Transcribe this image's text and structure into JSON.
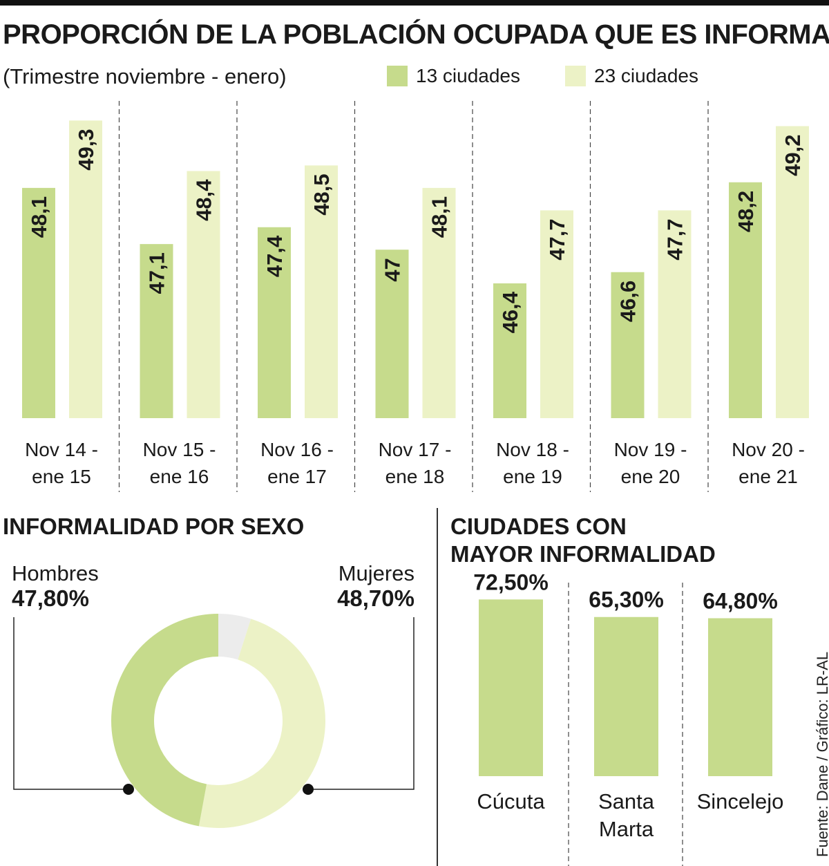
{
  "title": "PROPORCIÓN DE LA POBLACIÓN OCUPADA QUE ES INFORMAL",
  "subtitle": "(Trimestre noviembre - enero)",
  "colors": {
    "series13": "#c6db8c",
    "series23": "#ecf2c6",
    "pie_other": "#ececec",
    "text": "#1a1a1a"
  },
  "legend": [
    {
      "name": "13 ciudades",
      "color": "#c6db8c"
    },
    {
      "name": "23 ciudades",
      "color": "#ecf2c6"
    }
  ],
  "chart_data": [
    {
      "type": "bar",
      "title": "PROPORCIÓN DE LA POBLACIÓN OCUPADA QUE ES INFORMAL",
      "subtitle": "(Trimestre noviembre - enero)",
      "categories": [
        [
          "Nov 14 -",
          "ene 15"
        ],
        [
          "Nov 15 -",
          "ene 16"
        ],
        [
          "Nov 16 -",
          "ene 17"
        ],
        [
          "Nov 17 -",
          "ene 18"
        ],
        [
          "Nov 18 -",
          "ene 19"
        ],
        [
          "Nov 19 -",
          "ene 20"
        ],
        [
          "Nov 20 -",
          "ene 21"
        ]
      ],
      "series": [
        {
          "name": "13 ciudades",
          "values": [
            48.1,
            47.1,
            47.4,
            47.0,
            46.4,
            46.6,
            48.2
          ],
          "labels": [
            "48,1",
            "47,1",
            "47,4",
            "47",
            "46,4",
            "46,6",
            "48,2"
          ]
        },
        {
          "name": "23 ciudades",
          "values": [
            49.3,
            48.4,
            48.5,
            48.1,
            47.7,
            47.7,
            49.2
          ],
          "labels": [
            "49,3",
            "48,4",
            "48,5",
            "48,1",
            "47,7",
            "47,7",
            "49,2"
          ]
        }
      ],
      "ylim": [
        44.0,
        49.6
      ],
      "grid": false,
      "legend_position": "top"
    },
    {
      "type": "pie",
      "title": "INFORMALIDAD POR SEXO",
      "slices": [
        {
          "name": "Hombres",
          "value": 47.8,
          "label": "47,80%"
        },
        {
          "name": "Mujeres",
          "value": 48.7,
          "label": "48,70%"
        }
      ],
      "remainder_value": 5.0,
      "donut": true
    },
    {
      "type": "bar",
      "title": "CIUDADES CON MAYOR INFORMALIDAD",
      "title_lines": [
        "CIUDADES CON",
        "MAYOR INFORMALIDAD"
      ],
      "categories": [
        [
          "Cúcuta"
        ],
        [
          "Santa",
          "Marta"
        ],
        [
          "Sincelejo"
        ]
      ],
      "values": [
        72.5,
        65.3,
        64.8
      ],
      "labels": [
        "72,50%",
        "65,30%",
        "64,80%"
      ],
      "ylim": [
        0,
        76
      ]
    }
  ],
  "source": "Fuente: Dane / Gráfico: LR-AL"
}
